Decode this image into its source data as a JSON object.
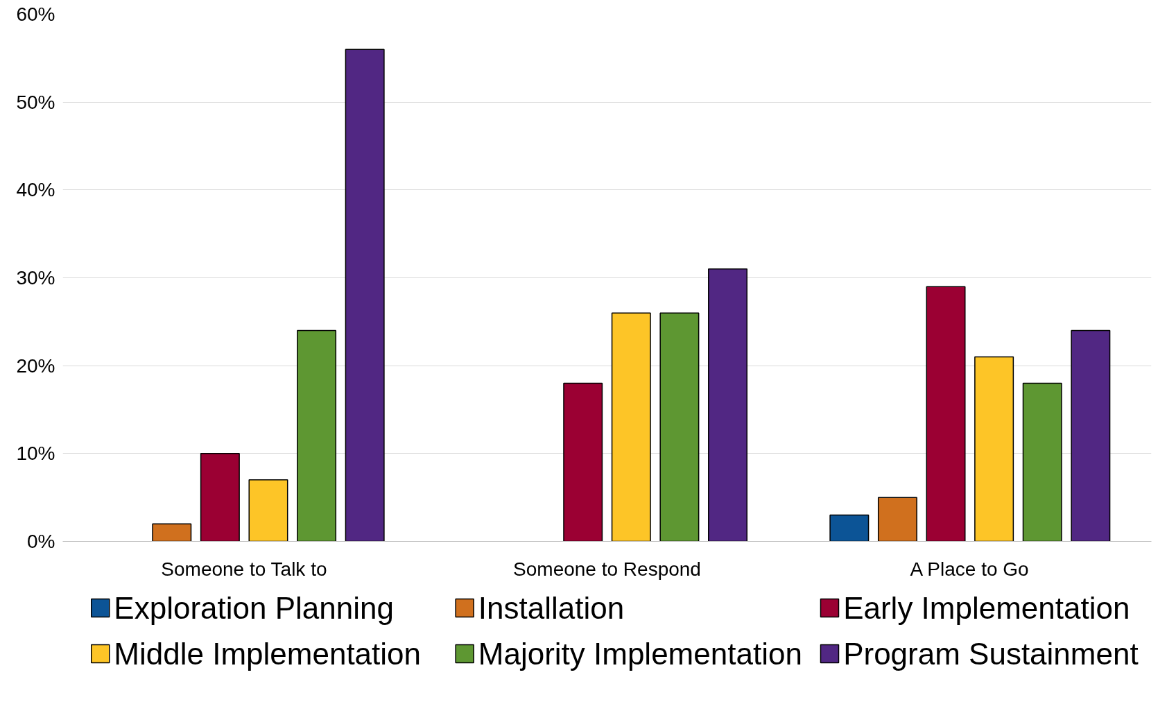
{
  "chart_data": {
    "type": "bar",
    "categories": [
      "Someone to Talk to",
      "Someone to Respond",
      "A Place to Go"
    ],
    "series": [
      {
        "name": "Exploration Planning",
        "color": "#0c5496",
        "values": [
          0,
          0,
          3
        ]
      },
      {
        "name": "Installation",
        "color": "#d0701e",
        "values": [
          2,
          0,
          5
        ]
      },
      {
        "name": "Early Implementation",
        "color": "#9b0033",
        "values": [
          10,
          18,
          29
        ]
      },
      {
        "name": "Middle Implementation",
        "color": "#fdc527",
        "values": [
          7,
          26,
          21
        ]
      },
      {
        "name": "Majority Implementation",
        "color": "#5e9732",
        "values": [
          24,
          26,
          18
        ]
      },
      {
        "name": "Program Sustainment",
        "color": "#512783",
        "values": [
          56,
          31,
          24
        ]
      }
    ],
    "ylim": [
      0,
      60
    ],
    "yticks": [
      {
        "value": 0,
        "label": "0%"
      },
      {
        "value": 10,
        "label": "10%"
      },
      {
        "value": 20,
        "label": "20%"
      },
      {
        "value": 30,
        "label": "30%"
      },
      {
        "value": 40,
        "label": "40%"
      },
      {
        "value": 50,
        "label": "50%"
      },
      {
        "value": 60,
        "label": "60%"
      }
    ],
    "grid": "y",
    "legend": "bottom"
  }
}
